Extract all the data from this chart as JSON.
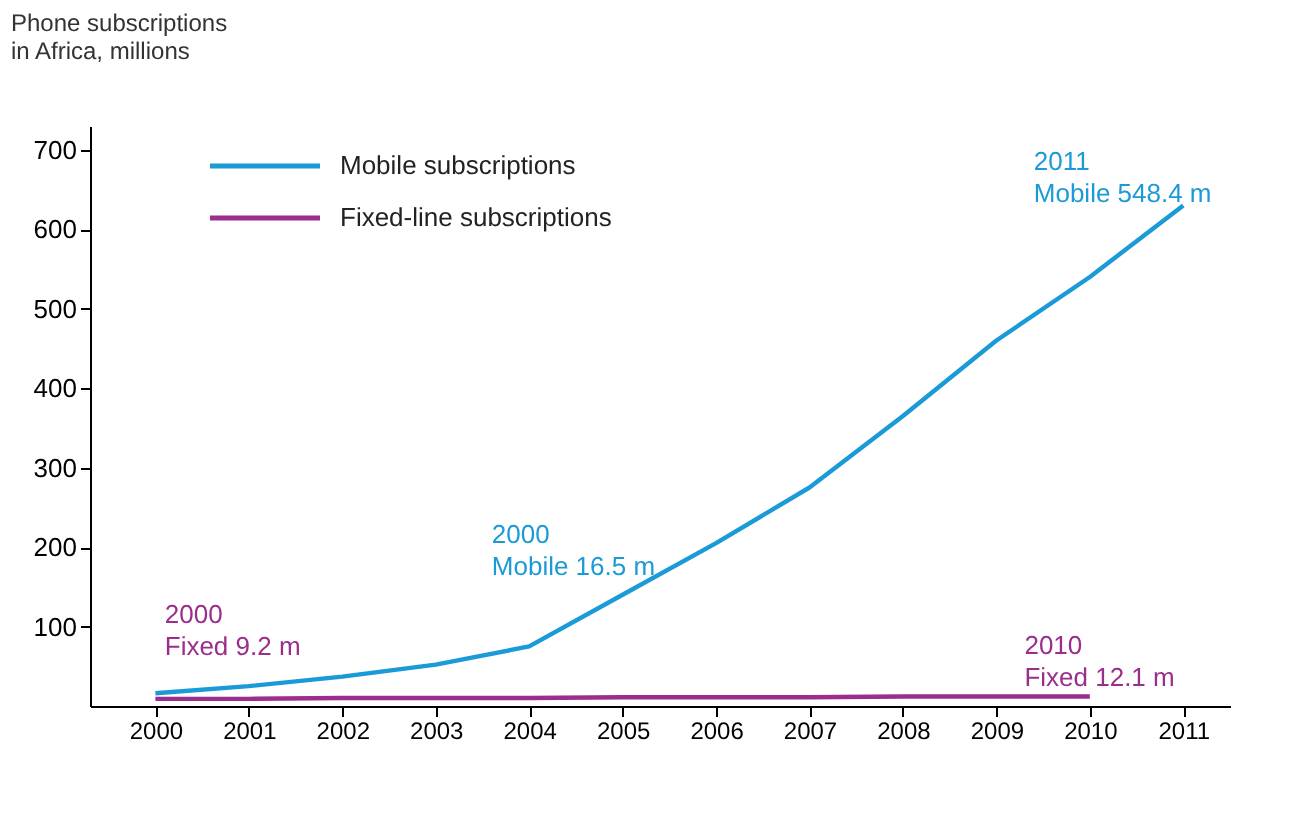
{
  "chart_data": {
    "type": "line",
    "ylabel": "Phone subscriptions\nin Africa, millions",
    "x": [
      2000,
      2001,
      2002,
      2003,
      2004,
      2005,
      2006,
      2007,
      2008,
      2009,
      2010,
      2011
    ],
    "series": [
      {
        "name": "Mobile subscriptions",
        "color": "#1a9ad6",
        "values": [
          16,
          25,
          37,
          52,
          75,
          140,
          205,
          275,
          365,
          460,
          540,
          630
        ]
      },
      {
        "name": "Fixed-line subscriptions",
        "color": "#9b2d8c",
        "values": [
          9,
          9,
          10,
          10,
          10,
          11,
          11,
          11,
          12,
          12,
          12,
          null
        ]
      }
    ],
    "annotations": [
      "2011\nMobile 548.4 m",
      "2000\nMobile 16.5 m",
      "2000\nFixed 9.2 m",
      "2010\nFixed 12.1 m"
    ],
    "xlim": [
      1999.3,
      2011.5
    ],
    "xticks": [
      2000,
      2001,
      2002,
      2003,
      2004,
      2005,
      2006,
      2007,
      2008,
      2009,
      2010,
      2011
    ],
    "ylim": [
      0,
      730
    ],
    "yticks": [
      100,
      200,
      300,
      400,
      500,
      600,
      700
    ],
    "grid": false,
    "legend": "top left",
    "marker": "none",
    "line_style": "solid"
  }
}
